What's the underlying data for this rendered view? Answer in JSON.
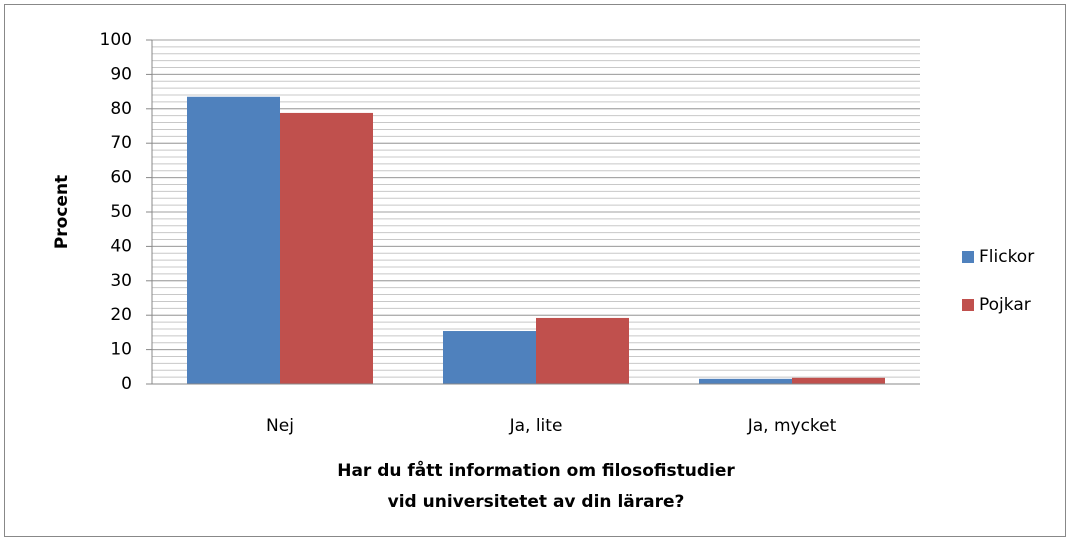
{
  "chart_data": {
    "type": "bar",
    "categories": [
      "Nej",
      "Ja, lite",
      "Ja, mycket"
    ],
    "series": [
      {
        "name": "Flickor",
        "color": "#4f81bd",
        "values": [
          83.5,
          15.4,
          1.5
        ]
      },
      {
        "name": "Pojkar",
        "color": "#c0504d",
        "values": [
          78.8,
          19.2,
          1.8
        ]
      }
    ],
    "y_label": "Procent",
    "x_label": [
      "Har du fått information om filosofistudier",
      "vid universitetet av din lärare?"
    ],
    "ylim": [
      0,
      100
    ],
    "yticks": [
      0,
      10,
      20,
      30,
      40,
      50,
      60,
      70,
      80,
      90,
      100
    ],
    "grid": true,
    "minor_ystep": 2,
    "legend": "right"
  }
}
